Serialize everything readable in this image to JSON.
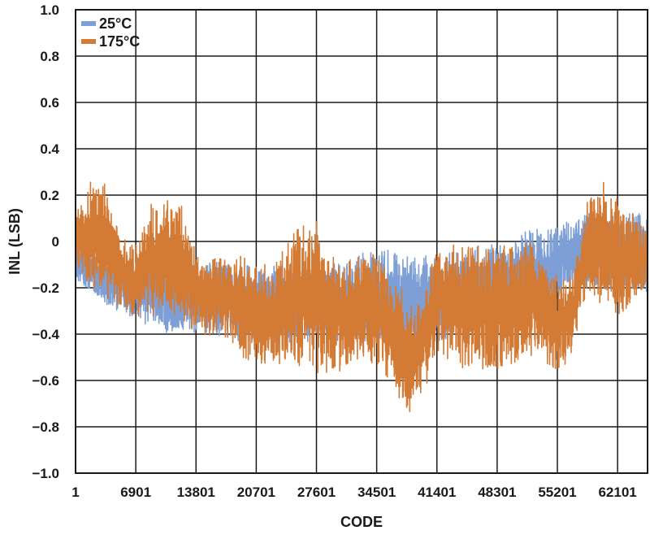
{
  "chart_data": {
    "type": "line",
    "xlabel": "CODE",
    "ylabel": "INL (LSB)",
    "xlim": [
      1,
      65535
    ],
    "ylim": [
      -1.0,
      1.0
    ],
    "x_ticks": [
      1,
      6901,
      13801,
      20701,
      27601,
      34501,
      41401,
      48301,
      55201,
      62101
    ],
    "y_ticks": [
      1.0,
      0.8,
      0.6,
      0.4,
      0.2,
      0,
      -0.2,
      -0.4,
      -0.6,
      -0.8,
      -1.0
    ],
    "y_tick_labels": [
      "1.0",
      "0.8",
      "0.6",
      "0.4",
      "0.2",
      "0",
      "−0.2",
      "−0.4",
      "−0.6",
      "−0.8",
      "−1.0"
    ],
    "grid": true,
    "legend": "top-left",
    "series": [
      {
        "name": "25°C",
        "color": "#7e9fd6",
        "x": [
          1,
          3400,
          6901,
          10400,
          13801,
          17300,
          20701,
          24200,
          27601,
          31100,
          34501,
          38000,
          41401,
          44900,
          48301,
          51800,
          55201,
          58700,
          62101,
          65535
        ],
        "ymax": [
          -0.02,
          -0.07,
          -0.05,
          -0.08,
          -0.09,
          -0.08,
          -0.11,
          -0.1,
          -0.1,
          -0.07,
          -0.02,
          -0.05,
          -0.06,
          -0.03,
          -0.01,
          0.05,
          0.07,
          0.13,
          0.11,
          0.14
        ],
        "ymin": [
          -0.17,
          -0.27,
          -0.34,
          -0.4,
          -0.4,
          -0.42,
          -0.45,
          -0.45,
          -0.44,
          -0.44,
          -0.44,
          -0.47,
          -0.47,
          -0.41,
          -0.4,
          -0.34,
          -0.24,
          -0.2,
          -0.22,
          -0.23
        ]
      },
      {
        "name": "175°C",
        "color": "#d37a35",
        "x": [
          1,
          1500,
          3400,
          5200,
          6901,
          8600,
          10400,
          12100,
          13801,
          17300,
          20701,
          22400,
          24200,
          25900,
          27601,
          29300,
          31100,
          34501,
          36300,
          38000,
          39700,
          41401,
          44900,
          48301,
          51800,
          55201,
          57000,
          58700,
          60400,
          62101,
          65535
        ],
        "ymax": [
          0.15,
          0.26,
          0.3,
          0.02,
          -0.02,
          0.17,
          0.22,
          0.18,
          -0.05,
          -0.05,
          -0.07,
          -0.1,
          0.02,
          0.07,
          0.09,
          -0.04,
          -0.08,
          -0.02,
          -0.16,
          -0.22,
          -0.25,
          0.02,
          0.01,
          -0.02,
          0.02,
          -0.15,
          -0.13,
          0.2,
          0.27,
          0.2,
          0.06
        ],
        "ymin": [
          -0.1,
          -0.22,
          -0.27,
          -0.29,
          -0.32,
          -0.34,
          -0.33,
          -0.35,
          -0.4,
          -0.43,
          -0.58,
          -0.56,
          -0.54,
          -0.55,
          -0.57,
          -0.6,
          -0.55,
          -0.54,
          -0.66,
          -0.75,
          -0.67,
          -0.49,
          -0.56,
          -0.58,
          -0.5,
          -0.56,
          -0.52,
          -0.25,
          -0.3,
          -0.33,
          -0.2
        ]
      }
    ]
  }
}
